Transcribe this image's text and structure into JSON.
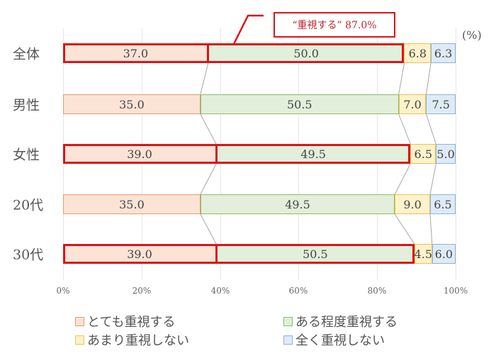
{
  "chart_data": {
    "type": "bar",
    "orientation": "horizontal",
    "stacked": true,
    "percent_stacked": true,
    "title": "",
    "xlabel": "",
    "ylabel": "",
    "unit_label": "(%)",
    "xlim": [
      0,
      100
    ],
    "x_ticks": [
      "0%",
      "20%",
      "40%",
      "60%",
      "80%",
      "100%"
    ],
    "grid": true,
    "legend_position": "bottom",
    "categories": [
      "全体",
      "男性",
      "女性",
      "20代",
      "30代"
    ],
    "series": [
      {
        "name": "とても重視する",
        "color": "#fbe3d6",
        "border": "#e59a6c",
        "values": [
          37.0,
          35.0,
          39.0,
          35.0,
          39.0
        ]
      },
      {
        "name": "ある程度重視する",
        "color": "#e2efda",
        "border": "#8dbb6a",
        "values": [
          50.0,
          50.5,
          49.5,
          49.5,
          50.5
        ]
      },
      {
        "name": "あまり重視しない",
        "color": "#fff2cc",
        "border": "#f0c14b",
        "values": [
          6.8,
          7.0,
          6.5,
          9.0,
          4.5
        ]
      },
      {
        "name": "全く重視しない",
        "color": "#deebf7",
        "border": "#8fb3d9",
        "values": [
          6.3,
          7.5,
          5.0,
          6.5,
          6.0
        ]
      }
    ],
    "highlighted_rows": [
      "全体",
      "女性",
      "30代"
    ],
    "highlight_color": "#d9151a",
    "annotations": [
      {
        "text": "“重視する” 87.0%",
        "target": "全体",
        "note": "sum of とても重視する + ある程度重視する"
      }
    ]
  },
  "labels": {
    "unit": "(%)",
    "callout": "“重視する” 87.0%",
    "rows": [
      "全体",
      "男性",
      "女性",
      "20代",
      "30代"
    ],
    "ticks": [
      "0%",
      "20%",
      "40%",
      "60%",
      "80%",
      "100%"
    ],
    "legend": [
      "とても重視する",
      "ある程度重視する",
      "あまり重視しない",
      "全く重視しない"
    ],
    "values": [
      [
        "37.0",
        "50.0",
        "6.8",
        "6.3"
      ],
      [
        "35.0",
        "50.5",
        "7.0",
        "7.5"
      ],
      [
        "39.0",
        "49.5",
        "6.5",
        "5.0"
      ],
      [
        "35.0",
        "49.5",
        "9.0",
        "6.5"
      ],
      [
        "39.0",
        "50.5",
        "4.5",
        "6.0"
      ]
    ]
  }
}
